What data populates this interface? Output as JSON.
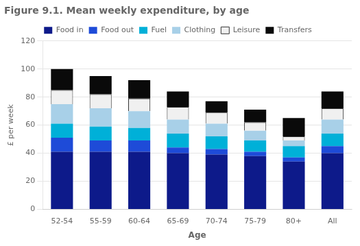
{
  "chart_data": {
    "type": "bar",
    "stacked": true,
    "title": "Figure 9.1. Mean weekly expenditure, by age",
    "xlabel": "Age",
    "ylabel": "£ per week",
    "categories": [
      "52-54",
      "55-59",
      "60-64",
      "65-69",
      "70-74",
      "75-79",
      "80+",
      "All"
    ],
    "series": [
      {
        "name": "Food in",
        "color": "#0d1a8a",
        "values": [
          41,
          41,
          41,
          40,
          39,
          38,
          34,
          40
        ]
      },
      {
        "name": "Food out",
        "color": "#1e4bd8",
        "values": [
          10,
          8,
          8,
          4,
          4,
          3,
          3,
          5
        ]
      },
      {
        "name": "Fuel",
        "color": "#00b0d8",
        "values": [
          10,
          10,
          9,
          10,
          9,
          8,
          8,
          9
        ]
      },
      {
        "name": "Clothing",
        "color": "#a8d0e8",
        "values": [
          14,
          13,
          12,
          10,
          9,
          7,
          4,
          10
        ]
      },
      {
        "name": "Leisure",
        "color": "#f0f0f0",
        "values": [
          10,
          10,
          9,
          9,
          8,
          6,
          3,
          8
        ]
      },
      {
        "name": "Transfers",
        "color": "#0a0a0a",
        "values": [
          15,
          13,
          13,
          11,
          8,
          9,
          13,
          12
        ]
      }
    ],
    "ylim": [
      0,
      120
    ],
    "yticks": [
      0,
      20,
      40,
      60,
      80,
      100,
      120
    ],
    "grid": true,
    "legend": "top"
  }
}
